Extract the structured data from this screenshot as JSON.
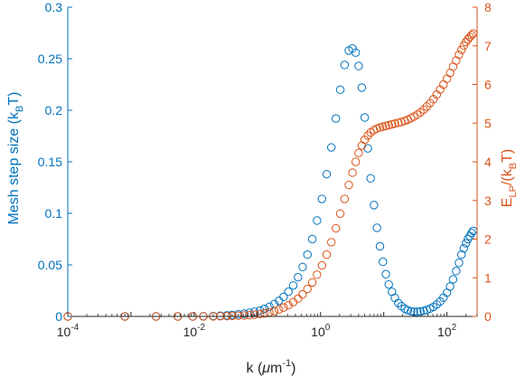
{
  "chart_data": {
    "type": "scatter",
    "title": "",
    "x_scale": "log",
    "xlim": [
      0.0001,
      300
    ],
    "xlabel": "k (μm⁻¹)",
    "x_ticks": [
      {
        "value": 0.0001,
        "base": "10",
        "exp": "-4"
      },
      {
        "value": 0.01,
        "base": "10",
        "exp": "-2"
      },
      {
        "value": 1,
        "label": "10⁰",
        "base": "10",
        "exp": "0"
      },
      {
        "value": 100,
        "base": "10",
        "exp": "2"
      }
    ],
    "y_left": {
      "label": "Mesh step size (kʙT)",
      "label_main": "Mesh step size (k",
      "label_sub": "B",
      "label_end": "T)",
      "ylim": [
        0,
        0.3
      ],
      "ticks": [
        "0",
        "0.05",
        "0.1",
        "0.15",
        "0.2",
        "0.25",
        "0.3"
      ],
      "color": "#0072BD"
    },
    "y_right": {
      "label": "E_LP/(k_BT)",
      "label_parts": [
        "E",
        "LP",
        "/(k",
        "B",
        "T)"
      ],
      "ylim": [
        0,
        8
      ],
      "ticks": [
        "0",
        "1",
        "2",
        "3",
        "4",
        "5",
        "6",
        "7",
        "8"
      ],
      "color": "#D95319"
    },
    "series": [
      {
        "axis": "left",
        "marker": "open-circle",
        "color": "#0072BD",
        "x": [
          0.0001,
          0.0008,
          0.0025,
          0.0055,
          0.0095,
          0.014,
          0.02,
          0.026,
          0.033,
          0.04,
          0.05,
          0.062,
          0.075,
          0.09,
          0.11,
          0.13,
          0.155,
          0.185,
          0.22,
          0.26,
          0.31,
          0.37,
          0.44,
          0.52,
          0.62,
          0.74,
          0.88,
          1.05,
          1.25,
          1.48,
          1.75,
          2.05,
          2.4,
          2.8,
          3.2,
          3.6,
          4.0,
          4.5,
          5.0,
          5.6,
          6.2,
          7.0,
          7.8,
          8.7,
          9.7,
          10.8,
          12,
          13.5,
          15,
          17,
          19,
          21.5,
          24,
          27,
          30,
          34,
          38,
          43,
          48,
          54,
          61,
          69,
          78,
          88,
          100,
          112,
          125,
          140,
          155,
          170,
          185,
          200,
          215,
          230,
          245,
          260
        ],
        "y": [
          0,
          0,
          0,
          0,
          0,
          0.0002,
          0.0004,
          0.0007,
          0.001,
          0.0015,
          0.002,
          0.0027,
          0.0035,
          0.0045,
          0.0058,
          0.0074,
          0.0094,
          0.012,
          0.0152,
          0.019,
          0.024,
          0.03,
          0.038,
          0.048,
          0.06,
          0.075,
          0.093,
          0.114,
          0.138,
          0.164,
          0.192,
          0.22,
          0.244,
          0.258,
          0.26,
          0.256,
          0.243,
          0.222,
          0.193,
          0.163,
          0.134,
          0.108,
          0.086,
          0.068,
          0.053,
          0.041,
          0.031,
          0.024,
          0.018,
          0.013,
          0.01,
          0.0075,
          0.006,
          0.005,
          0.0045,
          0.0045,
          0.0048,
          0.0054,
          0.0063,
          0.0076,
          0.0093,
          0.0116,
          0.0145,
          0.0182,
          0.023,
          0.029,
          0.036,
          0.044,
          0.052,
          0.06,
          0.066,
          0.071,
          0.075,
          0.078,
          0.081,
          0.083
        ]
      },
      {
        "axis": "right",
        "marker": "open-circle",
        "color": "#D95319",
        "x": [
          0.0001,
          0.0008,
          0.0025,
          0.0055,
          0.0095,
          0.014,
          0.02,
          0.026,
          0.033,
          0.04,
          0.05,
          0.062,
          0.075,
          0.09,
          0.11,
          0.13,
          0.155,
          0.185,
          0.22,
          0.26,
          0.31,
          0.37,
          0.44,
          0.52,
          0.62,
          0.74,
          0.88,
          1.05,
          1.25,
          1.48,
          1.75,
          2.05,
          2.4,
          2.8,
          3.2,
          3.6,
          4.0,
          4.5,
          5.0,
          5.6,
          6.2,
          7.0,
          7.8,
          8.7,
          9.7,
          10.8,
          12,
          13.5,
          15,
          17,
          19,
          21.5,
          24,
          27,
          30,
          34,
          38,
          43,
          48,
          54,
          61,
          69,
          78,
          88,
          100,
          112,
          125,
          140,
          155,
          170,
          185,
          200,
          215,
          230,
          245,
          260
        ],
        "y": [
          0,
          0,
          0,
          0,
          0,
          0,
          0.002,
          0.005,
          0.008,
          0.012,
          0.018,
          0.025,
          0.034,
          0.046,
          0.062,
          0.082,
          0.108,
          0.14,
          0.18,
          0.23,
          0.29,
          0.37,
          0.46,
          0.57,
          0.71,
          0.88,
          1.08,
          1.32,
          1.6,
          1.92,
          2.28,
          2.66,
          3.04,
          3.4,
          3.72,
          4.0,
          4.23,
          4.42,
          4.57,
          4.68,
          4.76,
          4.82,
          4.86,
          4.89,
          4.91,
          4.93,
          4.95,
          4.97,
          4.99,
          5.01,
          5.03,
          5.06,
          5.09,
          5.13,
          5.17,
          5.22,
          5.28,
          5.35,
          5.43,
          5.52,
          5.62,
          5.74,
          5.87,
          6.0,
          6.15,
          6.3,
          6.46,
          6.62,
          6.77,
          6.9,
          7.01,
          7.1,
          7.17,
          7.23,
          7.28,
          7.32
        ]
      }
    ],
    "grid": false,
    "legend": "none"
  }
}
